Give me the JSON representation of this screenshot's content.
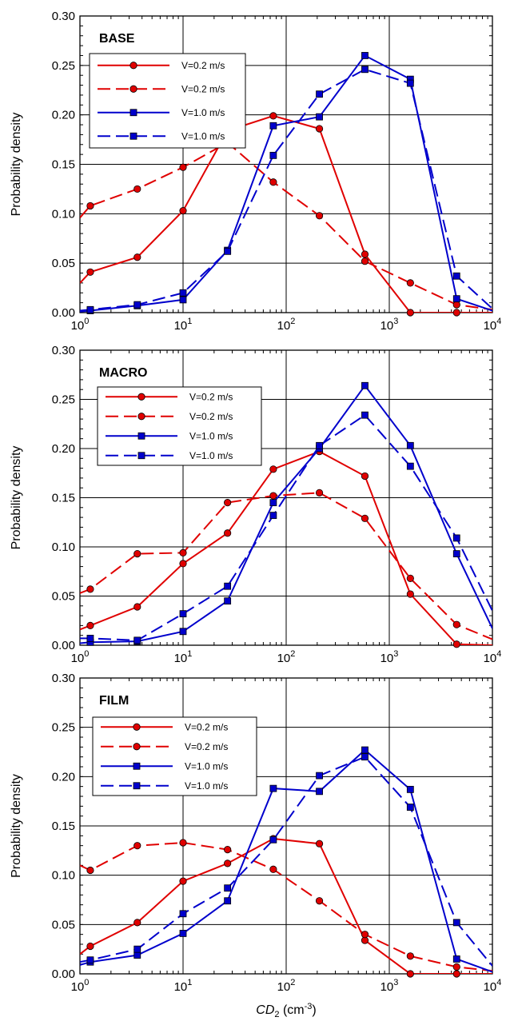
{
  "chart_data": [
    {
      "type": "line",
      "title": "BASE",
      "xlabel": "",
      "ylabel": "Probability density",
      "xscale": "log",
      "xlim": [
        1,
        10000
      ],
      "ylim": [
        0,
        0.3
      ],
      "grid": true,
      "legend": "top-left",
      "x_tick_labels": [
        "10^0",
        "10^1",
        "10^2",
        "10^3",
        "10^4"
      ],
      "y_tick_labels": [
        "0.00",
        "0.05",
        "0.10",
        "0.15",
        "0.20",
        "0.25",
        "0.30"
      ],
      "x": [
        1.26,
        3.6,
        10,
        27,
        75,
        210,
        580,
        1600,
        4500
      ],
      "series": [
        {
          "name": "V=0.2 m/s",
          "color": "#e00000",
          "dash": "solid",
          "marker": "circle",
          "values": [
            0.041,
            0.056,
            0.103,
            0.184,
            0.199,
            0.186,
            0.059,
            0.0,
            0.0
          ],
          "start": 0.03,
          "end": 0.0
        },
        {
          "name": "V=0.2 m/s",
          "color": "#e00000",
          "dash": "dashed",
          "marker": "circle",
          "values": [
            0.108,
            0.125,
            0.147,
            0.172,
            0.132,
            0.098,
            0.052,
            0.03,
            0.008
          ],
          "start": 0.096,
          "end": 0.003
        },
        {
          "name": "V=1.0 m/s",
          "color": "#0000cc",
          "dash": "solid",
          "marker": "square",
          "values": [
            0.002,
            0.007,
            0.013,
            0.063,
            0.189,
            0.198,
            0.26,
            0.236,
            0.014
          ],
          "start": 0.001,
          "end": 0.002
        },
        {
          "name": "V=1.0 m/s",
          "color": "#0000cc",
          "dash": "dashed",
          "marker": "square",
          "values": [
            0.003,
            0.008,
            0.02,
            0.062,
            0.159,
            0.221,
            0.246,
            0.232,
            0.037
          ],
          "start": 0.002,
          "end": 0.004
        }
      ]
    },
    {
      "type": "line",
      "title": "MACRO",
      "xlabel": "",
      "ylabel": "Probability density",
      "xscale": "log",
      "xlim": [
        1,
        10000
      ],
      "ylim": [
        0,
        0.3
      ],
      "grid": true,
      "legend": "top-left",
      "x_tick_labels": [
        "10^0",
        "10^1",
        "10^2",
        "10^3",
        "10^4"
      ],
      "y_tick_labels": [
        "0.00",
        "0.05",
        "0.10",
        "0.15",
        "0.20",
        "0.25",
        "0.30"
      ],
      "x": [
        1.26,
        3.6,
        10,
        27,
        75,
        210,
        580,
        1600,
        4500
      ],
      "series": [
        {
          "name": "V=0.2 m/s",
          "color": "#e00000",
          "dash": "solid",
          "marker": "circle",
          "values": [
            0.02,
            0.039,
            0.083,
            0.114,
            0.179,
            0.197,
            0.172,
            0.052,
            0.001
          ],
          "start": 0.016,
          "end": 0.0
        },
        {
          "name": "V=0.2 m/s",
          "color": "#e00000",
          "dash": "dashed",
          "marker": "circle",
          "values": [
            0.057,
            0.093,
            0.094,
            0.145,
            0.152,
            0.155,
            0.129,
            0.068,
            0.021
          ],
          "start": 0.053,
          "end": 0.006
        },
        {
          "name": "V=1.0 m/s",
          "color": "#0000cc",
          "dash": "solid",
          "marker": "square",
          "values": [
            0.003,
            0.004,
            0.014,
            0.045,
            0.145,
            0.2,
            0.264,
            0.203,
            0.093
          ],
          "start": 0.002,
          "end": 0.017
        },
        {
          "name": "V=1.0 m/s",
          "color": "#0000cc",
          "dash": "dashed",
          "marker": "square",
          "values": [
            0.007,
            0.005,
            0.032,
            0.06,
            0.132,
            0.203,
            0.234,
            0.182,
            0.109
          ],
          "start": 0.007,
          "end": 0.035
        }
      ]
    },
    {
      "type": "line",
      "title": "FILM",
      "xlabel": "CD2 (cm-3)",
      "xlabel_base": "CD",
      "xlabel_sub": "2",
      "xlabel_units_open": " (cm",
      "xlabel_units_sup": "-3",
      "xlabel_units_close": ")",
      "ylabel": "Probability density",
      "xscale": "log",
      "xlim": [
        1,
        10000
      ],
      "ylim": [
        0,
        0.3
      ],
      "grid": true,
      "legend": "top-left",
      "x_tick_labels": [
        "10^0",
        "10^1",
        "10^2",
        "10^3",
        "10^4"
      ],
      "y_tick_labels": [
        "0.00",
        "0.05",
        "0.10",
        "0.15",
        "0.20",
        "0.25",
        "0.30"
      ],
      "x": [
        1.26,
        3.6,
        10,
        27,
        75,
        210,
        580,
        1600,
        4500
      ],
      "series": [
        {
          "name": "V=0.2 m/s",
          "color": "#e00000",
          "dash": "solid",
          "marker": "circle",
          "values": [
            0.028,
            0.052,
            0.094,
            0.112,
            0.137,
            0.132,
            0.034,
            0.0,
            0.0
          ],
          "start": 0.02,
          "end": 0.0
        },
        {
          "name": "V=0.2 m/s",
          "color": "#e00000",
          "dash": "dashed",
          "marker": "circle",
          "values": [
            0.105,
            0.13,
            0.133,
            0.126,
            0.106,
            0.074,
            0.04,
            0.018,
            0.007
          ],
          "start": 0.11,
          "end": 0.003
        },
        {
          "name": "V=1.0 m/s",
          "color": "#0000cc",
          "dash": "solid",
          "marker": "square",
          "values": [
            0.012,
            0.019,
            0.041,
            0.074,
            0.188,
            0.185,
            0.227,
            0.187,
            0.015
          ],
          "start": 0.009,
          "end": 0.002
        },
        {
          "name": "V=1.0 m/s",
          "color": "#0000cc",
          "dash": "dashed",
          "marker": "square",
          "values": [
            0.014,
            0.025,
            0.061,
            0.087,
            0.136,
            0.201,
            0.22,
            0.169,
            0.052
          ],
          "start": 0.012,
          "end": 0.008
        }
      ]
    }
  ]
}
